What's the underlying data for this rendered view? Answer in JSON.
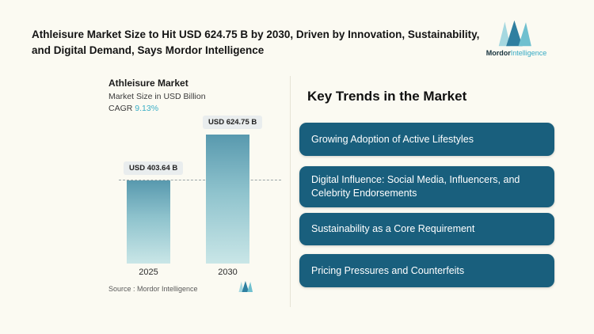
{
  "header": {
    "title": "Athleisure Market Size to Hit USD 624.75 B by 2030, Driven by Innovation, Sustainability, and Digital Demand, Says Mordor Intelligence",
    "logo": {
      "brand_dark": "Mordor",
      "brand_teal": "Intelligence"
    }
  },
  "chart": {
    "title": "Athleisure Market",
    "subtitle": "Market Size in USD Billion",
    "cagr_label": "CAGR ",
    "cagr_value": "9.13%",
    "source": "Source :  Mordor Intelligence"
  },
  "chart_data": {
    "type": "bar",
    "title": "Athleisure Market",
    "ylabel": "Market Size in USD Billion",
    "cagr": "9.13%",
    "categories": [
      "2025",
      "2030"
    ],
    "values": [
      403.64,
      624.75
    ],
    "value_labels": [
      "USD 403.64 B",
      "USD 624.75 B"
    ],
    "reference_line": "dashed line at 2025 value level",
    "legend": "none",
    "grid": false
  },
  "trends": {
    "heading": "Key Trends in the Market",
    "items": [
      "Growing Adoption of Active Lifestyles",
      "Digital Influence: Social Media, Influencers, and Celebrity Endorsements",
      "Sustainability as a Core Requirement",
      "Pricing Pressures and Counterfeits"
    ]
  },
  "colors": {
    "background": "#fbfaf2",
    "trend_card": "#195f7d",
    "accent_teal": "#35a9c4",
    "bar_gradient_top": "#5899ae",
    "bar_gradient_bottom": "#c9e6e7"
  }
}
